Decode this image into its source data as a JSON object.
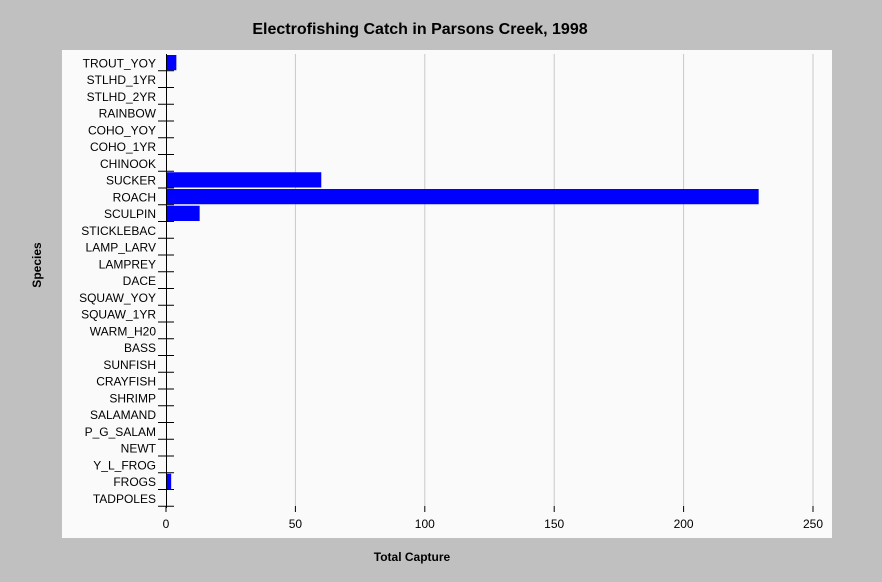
{
  "chart_data": {
    "type": "bar",
    "orientation": "horizontal",
    "title": "Electrofishing Catch in Parsons Creek, 1998",
    "xlabel": "Total Capture",
    "ylabel": "Species",
    "xlim": [
      0,
      250
    ],
    "xticks": [
      0,
      50,
      100,
      150,
      200,
      250
    ],
    "grid": true,
    "bar_color": "#0000ff",
    "plot_background": "#fafafa",
    "page_background": "#c0c0c0",
    "categories": [
      "TROUT_YOY",
      "STLHD_1YR",
      "STLHD_2YR",
      "RAINBOW",
      "COHO_YOY",
      "COHO_1YR",
      "CHINOOK",
      "SUCKER",
      "ROACH",
      "SCULPIN",
      "STICKLEBAC",
      "LAMP_LARV",
      "LAMPREY",
      "DACE",
      "SQUAW_YOY",
      "SQUAW_1YR",
      "WARM_H20",
      "BASS",
      "SUNFISH",
      "CRAYFISH",
      "SHRIMP",
      "SALAMAND",
      "P_G_SALAM",
      "NEWT",
      "Y_L_FROG",
      "FROGS",
      "TADPOLES"
    ],
    "values": [
      4,
      0,
      0,
      0,
      0,
      0,
      0,
      60,
      229,
      13,
      0,
      0,
      0,
      0,
      0,
      0,
      0,
      0,
      0,
      0,
      0,
      0,
      0,
      0,
      0,
      2,
      0
    ]
  }
}
